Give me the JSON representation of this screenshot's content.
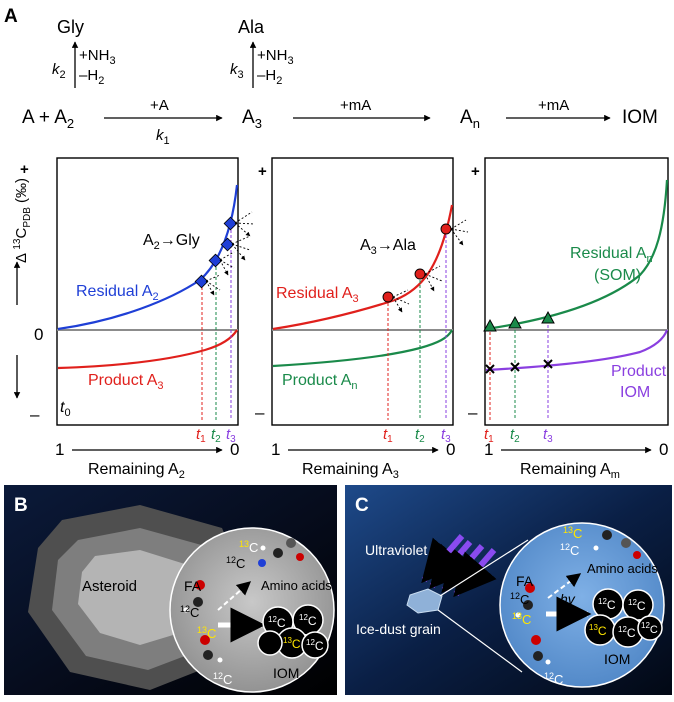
{
  "panel_a": {
    "label": "A",
    "scheme": {
      "gly": "Gly",
      "ala": "Ala",
      "nh3": "+NH",
      "nh3_sub": "3",
      "h2": "–H",
      "h2_sub": "2",
      "k2": "k",
      "k2_sub": "2",
      "k3": "k",
      "k3_sub": "3",
      "reactants": "A + A",
      "reactants_sub": "2",
      "arrow1_top": "+A",
      "arrow1_bottom": "k",
      "arrow1_bottom_sub": "1",
      "a3": "A",
      "a3_sub": "3",
      "arrow2_top": "+mA",
      "an": "A",
      "an_sub": "n",
      "arrow3_top": "+mA",
      "iom": "IOM"
    },
    "y_axis": {
      "label": "Δ ",
      "label_sup": "13",
      "label_c": "C",
      "label_sub": "PDB",
      "label_unit": " (‰)",
      "plus": "+",
      "zero": "0",
      "minus": "–"
    },
    "t0": "t",
    "t0_sub": "0",
    "t_labels": [
      {
        "t": "t",
        "sub": "1",
        "color": "#e0201c"
      },
      {
        "t": "t",
        "sub": "2",
        "color": "#1a8a4a"
      },
      {
        "t": "t",
        "sub": "3",
        "color": "#8a3fe0"
      }
    ],
    "plot1": {
      "annotation": "A",
      "annotation_sub": "2",
      "annotation_rest": "→Gly",
      "residual": "Residual A",
      "residual_sub": "2",
      "product": "Product A",
      "product_sub": "3",
      "x_start": "1",
      "x_end": "0",
      "x_label": "Remaining A",
      "x_label_sub": "2"
    },
    "plot2": {
      "annotation": "A",
      "annotation_sub": "3",
      "annotation_rest": "→Ala",
      "residual": "Residual A",
      "residual_sub": "3",
      "product": "Product A",
      "product_sub": "n",
      "x_start": "1",
      "x_end": "0",
      "x_label": "Remaining A",
      "x_label_sub": "3"
    },
    "plot3": {
      "residual": "Residual A",
      "residual_sub": "n",
      "residual2": "(SOM)",
      "product": "Product",
      "product2": "IOM",
      "x_start": "1",
      "x_end": "0",
      "x_label": "Remaining A",
      "x_label_sub": "m"
    },
    "colors": {
      "blue": "#1f3fd6",
      "red": "#e0201c",
      "green": "#1a8a4a",
      "purple": "#8a3fe0",
      "gray": "#8c8c8c"
    }
  },
  "panel_b": {
    "label": "B",
    "asteroid": "Asteroid",
    "sup13": "13",
    "sup12": "12",
    "c": "C",
    "fa": "FA",
    "amino": "Amino acids",
    "iom": "IOM"
  },
  "panel_c": {
    "label": "C",
    "uv": "Ultraviolet ray",
    "grain": "Ice-dust grain",
    "hv": "hv",
    "fa": "FA",
    "amino": "Amino acids",
    "iom": "IOM"
  }
}
